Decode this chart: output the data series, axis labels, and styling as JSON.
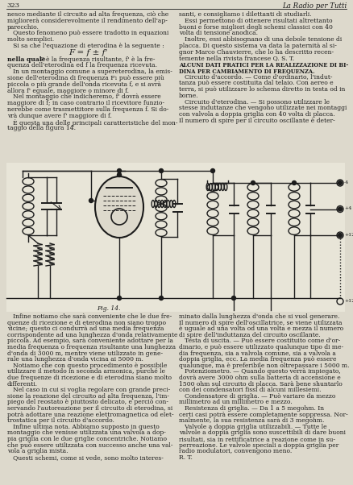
{
  "page_number": "323",
  "journal_title": "La Radio per Tutti",
  "bg": "#ddd9cc",
  "tc": "#1c1c1c",
  "fig_label": "Fig. 14.",
  "top_col1": [
    "nesco mediante il circuito ad alta frequenza, ciò che",
    "migliorerà considerevolmente il rendimento dell'ap-",
    "parecchio.",
    "   Questo fenomeno può essere tradotto in equazioni",
    "molto semplici.",
    "   Si sa che l'equazione di eterodina è la seguente :"
  ],
  "formula": "F=f±f'",
  "top_col1b": [
    "nella quale F è la frequenza risultante, f' è la fre-",
    "quenza dell'eterodina ed f la frequenza ricevuta.",
    "   In un montaggio comune a supereterodina, la emis-",
    "sione dell'eterodina di frequenza F₁ può essere più",
    "piccola o più grande dell'onda ricevuta f, e si avrà",
    "allora f' eguale, maggiore o minore di f.",
    "   Nel montaggio che indicheremo, f' dovrà essere",
    "maggiore di f; in caso contrario il ricevitore funzio-",
    "nerebbe come trasmettitore sulla frequenza f. Si do-",
    "vrà dunque avere f' maggiore di f.",
    "   È questa una delle principali caratteristiche del mon-",
    "taggio della figura 14."
  ],
  "top_col2": [
    "santi, e consigliamo i dilettanti di studiarli.",
    "   Essi permettono di ottenere risultati altrettanto",
    "buoni e forse migliori degli schemi classici con 40",
    "volta di tensione anodica.",
    "   Inoltre, essi abbisognano di una debole tensione di",
    "placca. Di questo sistema va data la paternità al si-",
    "gnor Marco Chauvierre, che lo ha descritto recen-",
    "temente nella rivista francese Q. S. T."
  ],
  "section_title1": "ALCUNI DATI PRATICI PER LA REALIZZAZIONE DI BI-",
  "section_title2": "DINA PER CAMBIAMENTO DI FREQUENZA.",
  "top_col2b": [
    "   Circuito d'accordo. — Come d'ordinario, l'indut-",
    "tanza può essere costituita dal telaio. Con aereo e",
    "terra, si può utilizzare lo schema diretto in testa od in",
    "borne.",
    "   Circuito d'eterodina. — Si possono utilizzare le",
    "stesse induttanze che vengono utilizzate nei montaggi",
    "con valvola a doppia griglia con 40 volta di placca.",
    "Il numero di spire per il circuito oscillante è deter-"
  ],
  "bot_col1": [
    "   Infine notiamo che sarà conveniente che le due fre-",
    "quenze di ricezione e di eterodina non siano troppo",
    "vicine; questo ci condurrà ad una media frequenza",
    "corrispondente ad una lunghezza d'onda relativamente",
    "piccola. Ad esempio, sarà conveniente adottare per la",
    "media frequenza o frequenza risultante una lunghezza",
    "d'onda di 3000 m, mentre viene utilizzato in gene-",
    "rale una lunghezza d'onda vicina ai 5000 m.",
    "   Notiamo che con questo procedimento è possibile",
    "utilizzare il metodo in seconda armonica, purché le",
    "due frequenze di ricezione e di eterodina siano molto",
    "differenti.",
    "   Nel caso in cui si voglia regolare con grande preci-",
    "sione la reazione del circuito ad alta frequenza, l'im-",
    "piego del reostato è piuttosto delicato, e perciò con-",
    "servando l'autoreazione per il circuito di eterodina, si",
    "potrà adottare una reazione elettromagnetica od elet-",
    "trostatica per il circuito d'accordo.",
    "   Infine ultima nota. Abbiamo supposto in questo",
    "montaggio che venisse utilizzata una valvola a dop-",
    "pia griglia con le due griglie concentriche. Notiamo",
    "che può essere utilizzata con successo anche una val-",
    "vola a griglia mista.",
    "   Questi schemi, come si vede, sono molto interes-"
  ],
  "bot_col2": [
    "minato dalla lunghezza d'onda che si vuol generare.",
    "Il numero di spire dell'oscillatrice, se viene utilizzata",
    "è uguale ad una volta od una volta e mezza il numero",
    "di spire dell'induttanza del circuito oscillante.",
    "   Testa di uscita. — Può essere costituito come d'or-",
    "dinario, e può essere utilizzato qualunque tipo di me-",
    "dia frequenza, sia a valvola comune, sia a valvola a",
    "doppia griglia, ecc. La media frequenza può essere",
    "qualunque, ma è preferibile non oltrepassare i 5000 m.",
    "   Potenziometro. — Quando questo verrà impiegato,",
    "dovrà avere 3000 ohm sulla batteria di accensione e",
    "1500 ohm sul circuito di placca. Sarà bene shuntarlo",
    "con dei condensatori fissi di alcuni millesiemi.",
    "   Condensatore di griglia. — Può variare da mezzo",
    "millimetro ad un millimetro e mezzo.",
    "   Resistenza di griglia. — Da 1 a 5 megohm. In",
    "certi casi potrà essere completamente soppressa. Nor-",
    "malmente, la sua resistenza sarà di 3 megohm.",
    "   Valvole a doppia griglia utilizzabili. — Tutte le",
    "valvole a doppia griglia sono suscettibili di dare buoni",
    "risultati, sia in rettificatrice a reazione come in su-",
    "perreazione. Le valvole speciali a doppia griglia per",
    "radio modulatori, convengono meno.",
    "R. T."
  ],
  "terminals": [
    [
      "-4",
      349
    ],
    [
      "+4",
      358
    ],
    [
      "+12",
      370
    ]
  ]
}
